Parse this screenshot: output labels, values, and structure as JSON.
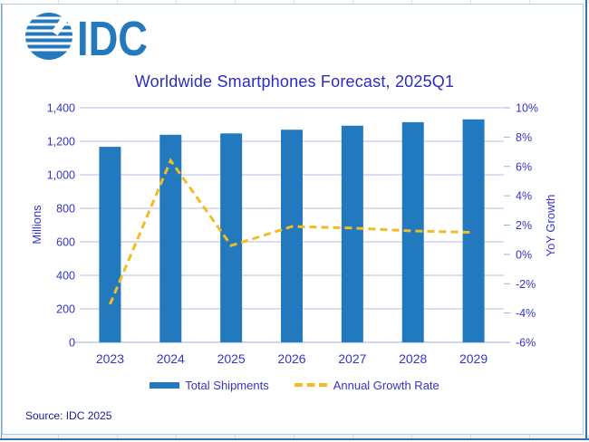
{
  "header": {
    "logo_text": "IDC"
  },
  "chart_data": {
    "type": "combo-bar-line",
    "title": "Worldwide Smartphones Forecast, 2025Q1",
    "categories": [
      "2023",
      "2024",
      "2025",
      "2026",
      "2027",
      "2028",
      "2029"
    ],
    "series": [
      {
        "name": "Total Shipments",
        "type": "bar",
        "axis": "left",
        "unit": "millions of units",
        "color": "#2379BD",
        "values": [
          1167,
          1239,
          1247,
          1269,
          1293,
          1314,
          1331
        ]
      },
      {
        "name": "Annual Growth Rate",
        "type": "line",
        "style": "dashed",
        "axis": "right",
        "unit": "percent YoY",
        "color": "#F2BC23",
        "values": [
          -3.4,
          6.4,
          0.6,
          1.9,
          1.8,
          1.6,
          1.5
        ]
      }
    ],
    "left_axis": {
      "title": "Millions",
      "min": 0,
      "max": 1400,
      "step": 200,
      "tick_labels": [
        "0",
        "200",
        "400",
        "600",
        "800",
        "1,000",
        "1,200",
        "1,400"
      ]
    },
    "right_axis": {
      "title": "YoY Growth",
      "min": -6,
      "max": 10,
      "step": 2,
      "tick_labels": [
        "-6%",
        "-4%",
        "-2%",
        "0%",
        "2%",
        "4%",
        "6%",
        "8%",
        "10%"
      ]
    },
    "grid": true,
    "legend_position": "bottom"
  },
  "footer": {
    "source": "Source: IDC 2025"
  },
  "colors": {
    "bar_blue": "#2379BD",
    "line_gold": "#F2BC23",
    "gridline": "#B9B9E6",
    "axis_line": "#9FAFDC",
    "axis_text": "#3434CC",
    "title_text": "#2B2BC6",
    "source_text": "#1B1B96",
    "logo_blue": "#2478BE",
    "frame_blue": "#2E75B6",
    "chart_border": "#AECBE8"
  }
}
